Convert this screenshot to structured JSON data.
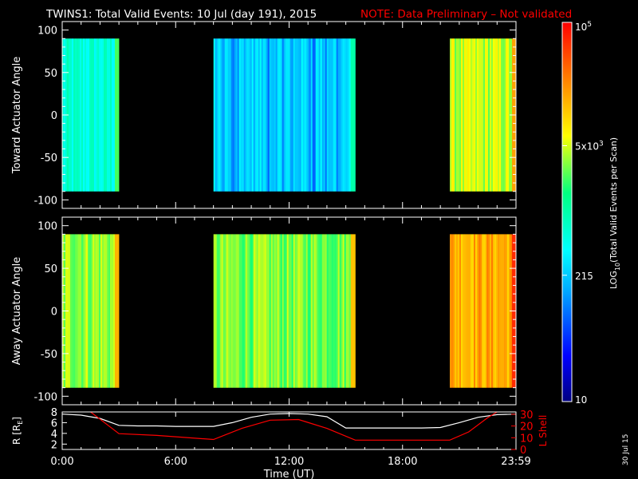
{
  "header": {
    "title": "TWINS1: Total Valid Events: 10 Jul (day 191), 2015",
    "note": "NOTE: Data Preliminary – Not validated",
    "note_color": "#ff0000"
  },
  "footer": {
    "date_stamp": "30 Jul 15"
  },
  "chart_data": [
    {
      "type": "heatmap",
      "ylabel": "Toward Actuator Angle",
      "ylim": [
        -110,
        110
      ],
      "yticks": [
        -100,
        -50,
        0,
        50,
        100
      ],
      "xlim_hours": [
        0,
        24
      ],
      "xticks": [
        "0:00",
        "6:00",
        "12:00",
        "18:00",
        "23:59"
      ],
      "data_range_deg": [
        -90,
        90
      ],
      "blocks": [
        {
          "start": "0:00",
          "end": "3:00",
          "level": 0.44
        },
        {
          "start": "8:00",
          "end": "15:30",
          "level": 0.35
        },
        {
          "start": "20:30",
          "end": "23:59",
          "level": 0.66
        }
      ]
    },
    {
      "type": "heatmap",
      "ylabel": "Away Actuator Angle",
      "ylim": [
        -110,
        110
      ],
      "yticks": [
        -100,
        -50,
        0,
        50,
        100
      ],
      "xlim_hours": [
        0,
        24
      ],
      "xticks": [
        "0:00",
        "6:00",
        "12:00",
        "18:00",
        "23:59"
      ],
      "data_range_deg": [
        -90,
        90
      ],
      "blocks": [
        {
          "start": "0:00",
          "end": "3:00",
          "level": 0.64
        },
        {
          "start": "8:00",
          "end": "15:30",
          "level": 0.62
        },
        {
          "start": "20:30",
          "end": "23:59",
          "level": 0.8
        }
      ]
    },
    {
      "type": "line",
      "ylabel_left": "R [R",
      "ylabel_left_sub": "E",
      "ylabel_left_end": "]",
      "ylabel_right": "L Shell",
      "xlabel": "Time (UT)",
      "ylim_left": [
        1,
        8
      ],
      "ylim_right": [
        0,
        32
      ],
      "yticks_left": [
        "2",
        "4",
        "6",
        "8"
      ],
      "yticks_right": [
        "0",
        "10",
        "20",
        "30"
      ],
      "xticks": [
        "0:00",
        "6:00",
        "12:00",
        "18:00",
        "23:59"
      ],
      "series": [
        {
          "color": "#ffffff",
          "axis": "left",
          "x": [
            "0:00",
            "1:00",
            "2:00",
            "3:00",
            "4:00",
            "5:00",
            "6:00",
            "7:00",
            "8:00",
            "9:00",
            "10:00",
            "11:00",
            "12:00",
            "13:00",
            "14:00",
            "15:00",
            "16:00",
            "17:00",
            "18:00",
            "19:00",
            "20:00",
            "21:00",
            "22:00",
            "23:00",
            "23:59"
          ],
          "y": [
            7.6,
            7.4,
            6.8,
            5.5,
            5.4,
            5.4,
            5.3,
            5.3,
            5.3,
            6.0,
            7.0,
            7.6,
            7.7,
            7.6,
            7.1,
            5.0,
            5.0,
            5.0,
            5.0,
            5.0,
            5.1,
            6.0,
            7.0,
            7.5,
            7.6
          ]
        },
        {
          "color": "#ff0000",
          "axis": "right",
          "x": [
            "1:30",
            "3:00",
            "5:00",
            "8:00",
            "9:30",
            "11:00",
            "12:30",
            "14:00",
            "15:30",
            "18:00",
            "20:30",
            "21:30",
            "22:30",
            "23:00"
          ],
          "y": [
            32,
            13.5,
            12,
            8.5,
            18,
            25,
            25.5,
            18,
            8,
            8,
            8,
            15,
            27,
            32
          ]
        }
      ]
    }
  ],
  "colorbar": {
    "label": "LOG",
    "label_sub": "10",
    "label_rest": "(Total Valid Events per Scan)",
    "ticks": [
      {
        "base": "10",
        "exp": "5",
        "value": 100000
      },
      {
        "base": "5x10",
        "exp": "3",
        "value": 5000
      },
      {
        "base": "215",
        "exp": "",
        "value": 215
      },
      {
        "base": "10",
        "exp": "",
        "value": 10
      }
    ],
    "min": 10,
    "max": 100000
  }
}
